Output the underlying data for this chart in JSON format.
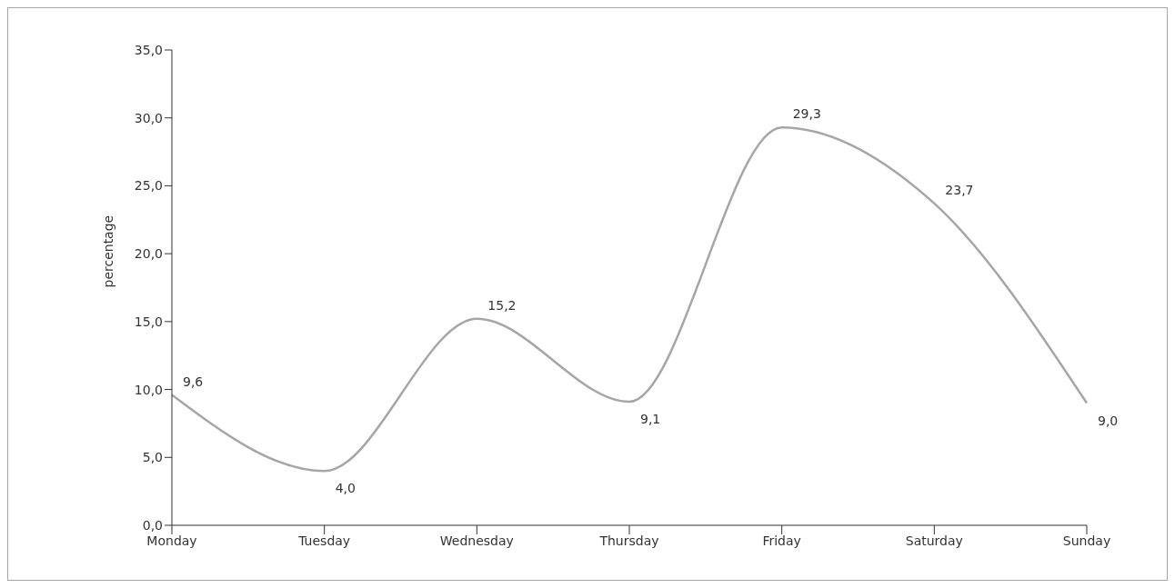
{
  "chart_data": {
    "type": "line",
    "ylabel": "percentage",
    "categories": [
      "Monday",
      "Tuesday",
      "Wednesday",
      "Thursday",
      "Friday",
      "Saturday",
      "Sunday"
    ],
    "series": [
      {
        "color": "#a6a6a6",
        "values": [
          9.6,
          4.0,
          15.2,
          9.1,
          29.3,
          23.7,
          9.0
        ],
        "value_labels": [
          "9,6",
          "4,0",
          "15,2",
          "9,1",
          "29,3",
          "23,7",
          "9,0"
        ]
      }
    ],
    "ylim": [
      0,
      35
    ],
    "yticks": [
      {
        "value": 0,
        "label": "0,0"
      },
      {
        "value": 5,
        "label": "5,0"
      },
      {
        "value": 10,
        "label": "10,0"
      },
      {
        "value": 15,
        "label": "15,0"
      },
      {
        "value": 20,
        "label": "20,0"
      },
      {
        "value": 25,
        "label": "25,0"
      },
      {
        "value": 30,
        "label": "30,0"
      },
      {
        "value": 35,
        "label": "35,0"
      }
    ],
    "grid": false,
    "legend": false,
    "marker": "none",
    "line_style": "solid"
  }
}
